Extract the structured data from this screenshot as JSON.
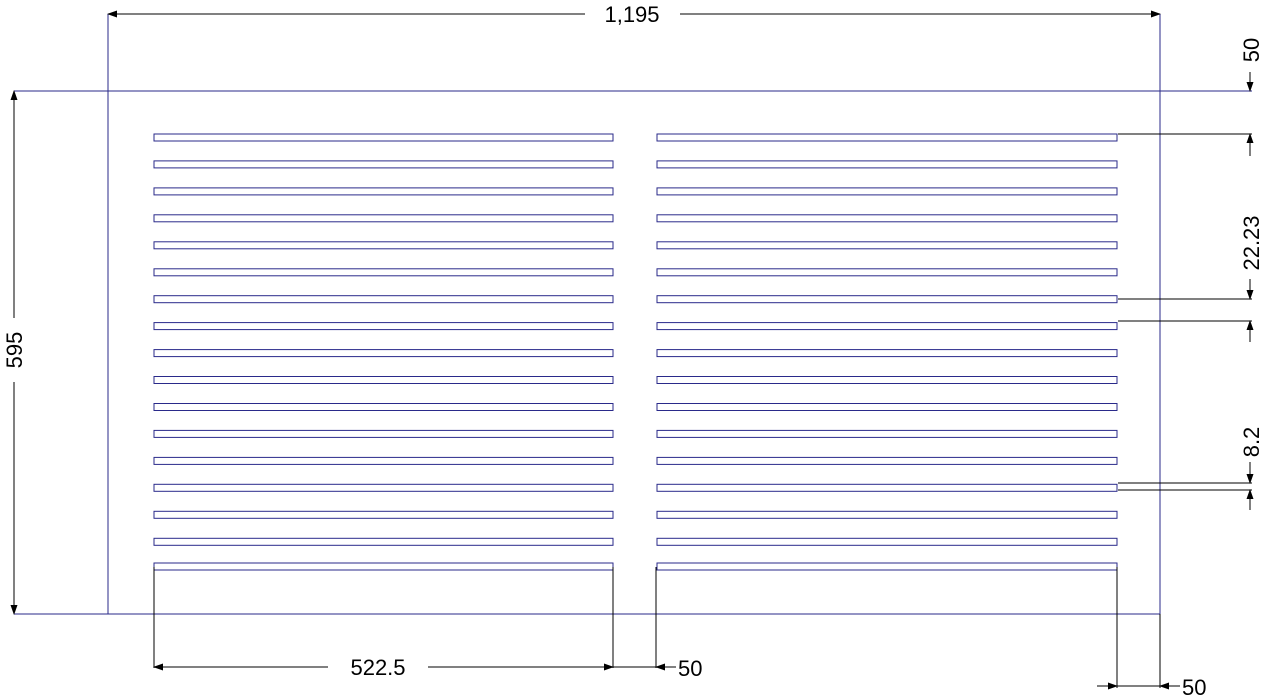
{
  "drawing": {
    "outline_color": "#2a2a8a",
    "dimension_color": "#000000",
    "dimensions": {
      "overall_width": "1,195",
      "overall_height": "595",
      "top_margin": "50",
      "slot_pitch": "22.23",
      "slot_height": "8.2",
      "slot_width": "522.5",
      "center_gap": "50",
      "side_margin": "50"
    },
    "slot_rows": 17,
    "slot_columns": 2
  }
}
